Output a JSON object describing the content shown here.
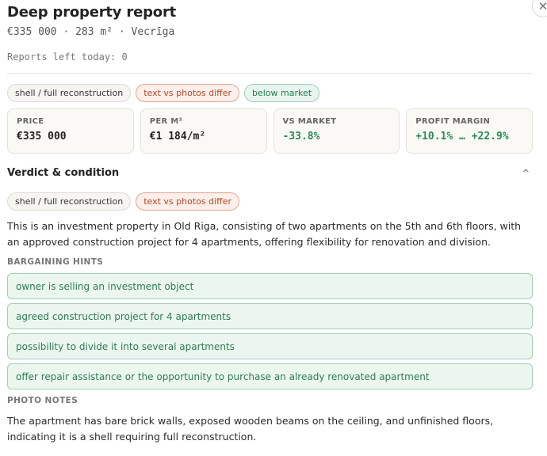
{
  "header": {
    "title": "Deep property report",
    "subtitle": "€335 000 · 283 m² · Vecrīga",
    "reports_left": "Reports left today: 0",
    "close_glyph": "✕"
  },
  "tags": [
    {
      "label": "shell / full reconstruction",
      "tone": "neutral"
    },
    {
      "label": "text vs photos differ",
      "tone": "warn"
    },
    {
      "label": "below market",
      "tone": "good"
    }
  ],
  "stats": [
    {
      "label": "PRICE",
      "value": "€335 000",
      "tone": "normal"
    },
    {
      "label": "PER M²",
      "value": "€1 184/m²",
      "tone": "normal"
    },
    {
      "label": "VS MARKET",
      "value": "-33.8%",
      "tone": "green"
    },
    {
      "label": "PROFIT MARGIN",
      "value": "+10.1% … +22.9%",
      "tone": "green"
    }
  ],
  "verdict": {
    "title": "Verdict & condition",
    "toggle_glyph": "^",
    "tags": [
      {
        "label": "shell / full reconstruction",
        "tone": "neutral"
      },
      {
        "label": "text vs photos differ",
        "tone": "warn"
      }
    ],
    "description": "This is an investment property in Old Riga, consisting of two apartments on the 5th and 6th floors, with an approved construction project for 4 apartments, offering flexibility for renovation and division.",
    "bargaining_label": "BARGAINING HINTS",
    "hints": [
      "owner is selling an investment object",
      "agreed construction project for 4 apartments",
      "possibility to divide it into several apartments",
      "offer repair assistance or the opportunity to purchase an already renovated apartment"
    ],
    "photo_notes_label": "PHOTO NOTES",
    "photo_notes": "The apartment has bare brick walls, exposed wooden beams on the ceiling, and unfinished floors, indicating it is a shell requiring full reconstruction."
  },
  "colors": {
    "accent_green": "#2a8a55",
    "warn_red": "#b5472a"
  }
}
